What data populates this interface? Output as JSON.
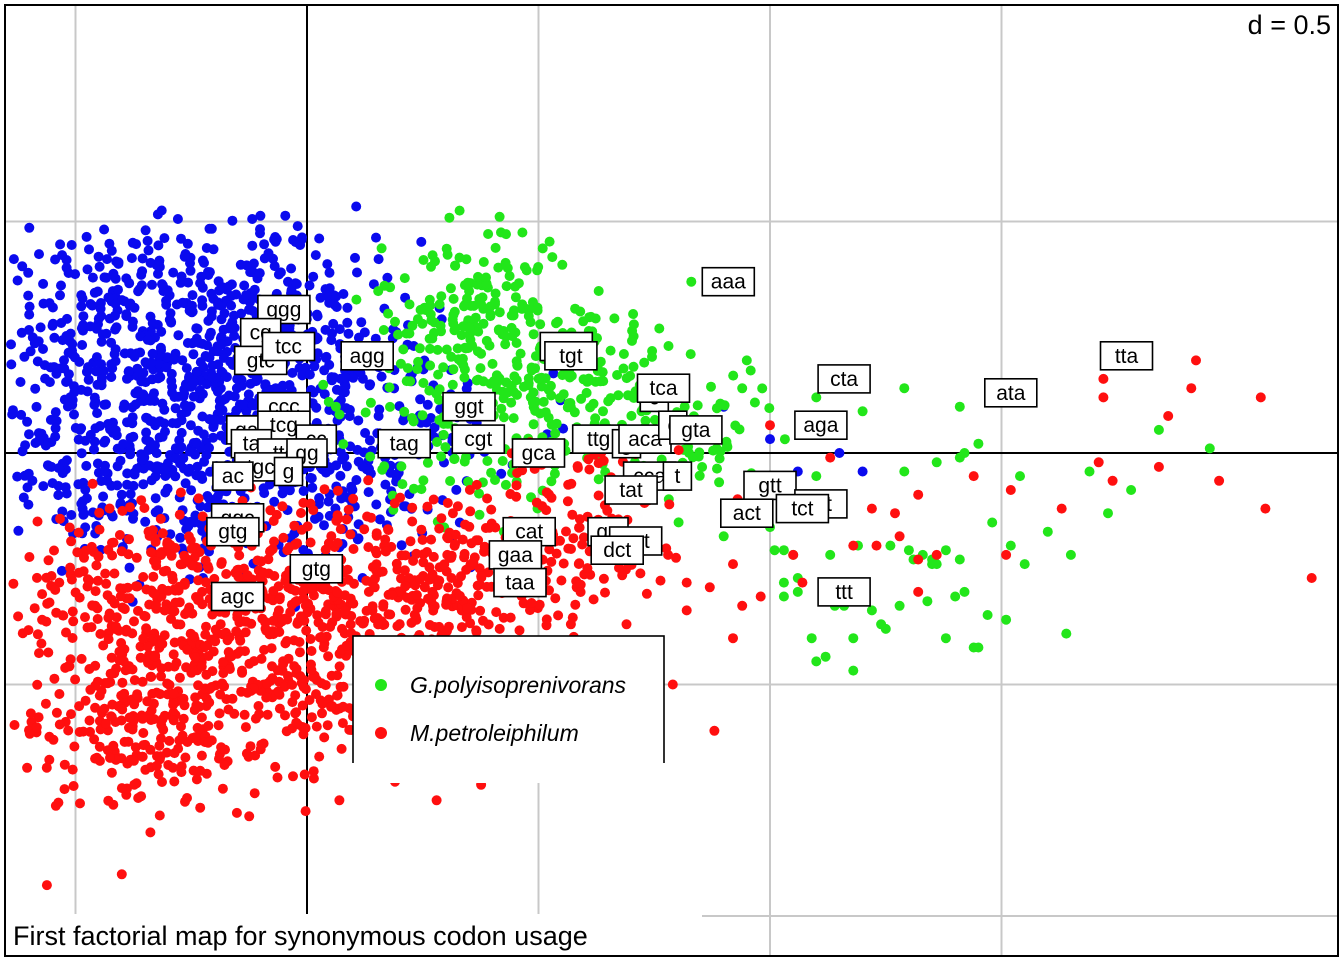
{
  "chart_data": {
    "type": "scatter",
    "title": "First factorial map for synonymous codon usage",
    "scale_label": "d = 0.5",
    "grid": true,
    "grid_step": 0.5,
    "xlim": [
      -0.65,
      2.25
    ],
    "ylim": [
      -1.9,
      1.0
    ],
    "legend": {
      "placement": "bottom-center",
      "entries": [
        {
          "name": "G.polyisoprenivorans",
          "color": "#22e61a"
        },
        {
          "name": "M.petroleiphilum",
          "color": "#ff0f0f"
        }
      ]
    },
    "colors": {
      "blue_group": "#0a0aee",
      "green_group": "#22e61a",
      "red_group": "#ff0f0f"
    },
    "clouds": [
      {
        "color": "#0a0aee",
        "core": [
          [
            -0.51,
            0.26
          ],
          [
            -0.47,
            -0.07
          ],
          [
            -0.42,
            0.13
          ],
          [
            -0.37,
            0.33
          ],
          [
            -0.33,
            -0.07
          ],
          [
            -0.29,
            0.18
          ],
          [
            -0.24,
            0.37
          ],
          [
            -0.21,
            0.04
          ],
          [
            -0.17,
            -0.11
          ],
          [
            -0.14,
            0.2
          ],
          [
            -0.1,
            0.33
          ],
          [
            -0.06,
            -0.02
          ],
          [
            -0.02,
            0.15
          ],
          [
            0.04,
            0.26
          ],
          [
            0.1,
            -0.04
          ],
          [
            0.18,
            0.09
          ]
        ],
        "spread": [
          0.13,
          0.09
        ],
        "points": 1300,
        "extra": [
          [
            -0.41,
            -0.07
          ],
          [
            -0.4,
            -0.09
          ],
          [
            -0.03,
            0.46
          ],
          [
            -0.02,
            0.49
          ],
          [
            0.07,
            0.03
          ],
          [
            0.33,
            -0.15
          ],
          [
            0.9,
            0.1
          ],
          [
            1.0,
            0.03
          ],
          [
            1.06,
            -0.04
          ],
          [
            1.15,
            0.0
          ],
          [
            1.2,
            -0.04
          ],
          [
            0.12,
            -0.27
          ]
        ]
      },
      {
        "color": "#22e61a",
        "core": [
          [
            0.25,
            0.2
          ],
          [
            0.3,
            0.31
          ],
          [
            0.35,
            0.14
          ],
          [
            0.42,
            0.26
          ],
          [
            0.5,
            0.1
          ],
          [
            0.58,
            0.22
          ],
          [
            0.65,
            0.14
          ],
          [
            0.75,
            0.1
          ],
          [
            0.85,
            0.01
          ],
          [
            0.25,
            0.02
          ],
          [
            0.46,
            0.0
          ],
          [
            0.38,
            0.37
          ]
        ],
        "spread": [
          0.09,
          0.07
        ],
        "points": 520,
        "extra": [
          [
            0.83,
            0.37
          ],
          [
            1.1,
            0.12
          ],
          [
            1.2,
            0.09
          ],
          [
            1.29,
            0.14
          ],
          [
            1.41,
            0.1
          ],
          [
            1.29,
            -0.04
          ],
          [
            1.36,
            -0.02
          ],
          [
            1.41,
            -0.01
          ],
          [
            1.42,
            0.0
          ],
          [
            1.45,
            0.02
          ],
          [
            1.54,
            -0.05
          ],
          [
            1.69,
            -0.04
          ],
          [
            1.78,
            -0.08
          ],
          [
            1.84,
            0.05
          ],
          [
            1.95,
            0.01
          ],
          [
            1.35,
            -0.24
          ],
          [
            1.41,
            -0.23
          ],
          [
            1.3,
            -0.21
          ],
          [
            1.03,
            -0.21
          ],
          [
            1.14,
            -0.3
          ],
          [
            1.36,
            -0.24
          ],
          [
            1.38,
            -0.4
          ],
          [
            1.55,
            -0.24
          ],
          [
            1.51,
            -0.36
          ],
          [
            1.42,
            -0.3
          ],
          [
            1.31,
            -0.23
          ],
          [
            1.26,
            -0.2
          ],
          [
            1.19,
            -0.2
          ],
          [
            1.0,
            -0.16
          ],
          [
            1.64,
            -0.39
          ],
          [
            1.18,
            -0.4
          ],
          [
            1.18,
            -0.47
          ],
          [
            1.03,
            -0.31
          ],
          [
            1.05,
            -0.22
          ],
          [
            1.33,
            -0.22
          ],
          [
            1.34,
            -0.32
          ],
          [
            1.06,
            -0.3
          ],
          [
            1.14,
            -0.33
          ],
          [
            1.13,
            -0.22
          ],
          [
            1.24,
            -0.37
          ],
          [
            1.22,
            -0.34
          ],
          [
            1.16,
            -0.33
          ],
          [
            1.18,
            -0.31
          ],
          [
            0.63,
            0.35
          ],
          [
            0.95,
            0.2
          ],
          [
            1.1,
            -0.05
          ],
          [
            1.1,
            -0.45
          ],
          [
            1.12,
            -0.44
          ],
          [
            1.09,
            -0.4
          ],
          [
            1.01,
            -0.21
          ],
          [
            0.95,
            -0.12
          ],
          [
            0.9,
            -0.18
          ],
          [
            1.06,
            -0.27
          ],
          [
            1.03,
            -0.28
          ],
          [
            1.44,
            -0.42
          ],
          [
            1.47,
            -0.35
          ],
          [
            1.35,
            -0.23
          ],
          [
            1.38,
            -0.21
          ],
          [
            1.28,
            -0.33
          ],
          [
            1.25,
            -0.38
          ],
          [
            1.4,
            -0.31
          ],
          [
            1.45,
            -0.42
          ],
          [
            1.48,
            -0.15
          ],
          [
            1.52,
            -0.2
          ],
          [
            1.6,
            -0.17
          ],
          [
            1.65,
            -0.22
          ],
          [
            1.73,
            -0.13
          ]
        ]
      },
      {
        "color": "#ff0f0f",
        "core": [
          [
            -0.44,
            -0.33
          ],
          [
            -0.38,
            -0.53
          ],
          [
            -0.33,
            -0.26
          ],
          [
            -0.28,
            -0.61
          ],
          [
            -0.22,
            -0.4
          ],
          [
            -0.17,
            -0.22
          ],
          [
            -0.12,
            -0.51
          ],
          [
            -0.06,
            -0.33
          ],
          [
            0.01,
            -0.26
          ],
          [
            0.08,
            -0.44
          ],
          [
            0.15,
            -0.33
          ],
          [
            0.22,
            -0.2
          ],
          [
            0.3,
            -0.37
          ],
          [
            0.4,
            -0.26
          ],
          [
            0.52,
            -0.18
          ],
          [
            0.62,
            -0.13
          ],
          [
            -0.42,
            -0.65
          ],
          [
            -0.3,
            -0.42
          ],
          [
            -0.02,
            -0.56
          ]
        ],
        "spread": [
          0.12,
          0.08
        ],
        "points": 1350,
        "extra": [
          [
            0.85,
            0.05
          ],
          [
            0.93,
            -0.1
          ],
          [
            0.96,
            -0.14
          ],
          [
            1.07,
            -0.28
          ],
          [
            1.22,
            -0.12
          ],
          [
            1.28,
            -0.18
          ],
          [
            1.32,
            -0.23
          ],
          [
            1.36,
            -0.22
          ],
          [
            1.44,
            -0.05
          ],
          [
            1.52,
            -0.08
          ],
          [
            1.63,
            -0.12
          ],
          [
            1.71,
            -0.02
          ],
          [
            1.72,
            0.16
          ],
          [
            1.74,
            -0.06
          ],
          [
            1.84,
            -0.03
          ],
          [
            1.97,
            -0.06
          ],
          [
            2.07,
            -0.12
          ],
          [
            2.17,
            -0.27
          ],
          [
            2.25,
            -0.04
          ],
          [
            2.47,
            -0.04
          ],
          [
            2.7,
            -0.04
          ],
          [
            1.91,
            0.14
          ],
          [
            1.72,
            0.12
          ],
          [
            0.94,
            -0.33
          ],
          [
            0.82,
            -0.34
          ],
          [
            0.72,
            -0.41
          ],
          [
            0.68,
            -0.56
          ],
          [
            0.62,
            -0.41
          ],
          [
            0.45,
            -0.6
          ],
          [
            0.67,
            -0.46
          ],
          [
            0.55,
            -0.47
          ],
          [
            0.98,
            -0.31
          ],
          [
            1.05,
            -0.22
          ],
          [
            1.32,
            -0.3
          ],
          [
            1.51,
            -0.22
          ],
          [
            1.86,
            0.08
          ],
          [
            1.92,
            0.2
          ],
          [
            2.06,
            0.12
          ],
          [
            1.17,
            0.18
          ],
          [
            1.0,
            0.06
          ],
          [
            1.13,
            -0.01
          ],
          [
            0.76,
            -0.43
          ],
          [
            0.79,
            -0.5
          ],
          [
            0.69,
            -0.37
          ],
          [
            0.92,
            -0.4
          ],
          [
            0.68,
            -0.52
          ],
          [
            0.88,
            -0.6
          ],
          [
            -0.4,
            -0.91
          ],
          [
            -0.19,
            -0.66
          ],
          [
            -0.1,
            -0.64
          ],
          [
            0.07,
            -0.75
          ],
          [
            0.19,
            -0.71
          ],
          [
            0.28,
            -0.75
          ],
          [
            0.38,
            -0.64
          ],
          [
            0.53,
            -0.55
          ],
          [
            0.57,
            -0.37
          ],
          [
            0.72,
            -0.26
          ],
          [
            0.78,
            -0.22
          ],
          [
            0.82,
            -0.28
          ],
          [
            0.87,
            -0.29
          ],
          [
            0.92,
            -0.24
          ],
          [
            1.18,
            -0.2
          ],
          [
            1.23,
            -0.2
          ],
          [
            1.27,
            -0.13
          ],
          [
            1.32,
            -0.09
          ]
        ]
      }
    ],
    "codon_labels": [
      {
        "text": "ggg",
        "x": -0.05,
        "y": 0.31
      },
      {
        "text": "cg",
        "x": -0.1,
        "y": 0.26
      },
      {
        "text": "gtc",
        "x": -0.1,
        "y": 0.2
      },
      {
        "text": "tcc",
        "x": -0.04,
        "y": 0.23
      },
      {
        "text": "agg",
        "x": 0.13,
        "y": 0.21
      },
      {
        "text": "ccc",
        "x": -0.05,
        "y": 0.1
      },
      {
        "text": "ga",
        "x": -0.13,
        "y": 0.05
      },
      {
        "text": "tcg",
        "x": -0.05,
        "y": 0.06
      },
      {
        "text": "cc",
        "x": 0.02,
        "y": 0.03
      },
      {
        "text": "ta",
        "x": -0.12,
        "y": 0.02
      },
      {
        "text": "ttc",
        "x": -0.05,
        "y": 0.0
      },
      {
        "text": "gg",
        "x": 0.0,
        "y": 0.0
      },
      {
        "text": "tgc",
        "x": -0.1,
        "y": -0.03
      },
      {
        "text": "ac",
        "x": -0.16,
        "y": -0.05
      },
      {
        "text": "g",
        "x": -0.04,
        "y": -0.04
      },
      {
        "text": "tag",
        "x": 0.21,
        "y": 0.02
      },
      {
        "text": "ggt",
        "x": 0.35,
        "y": 0.1
      },
      {
        "text": "cgt",
        "x": 0.37,
        "y": 0.03
      },
      {
        "text": "gga",
        "x": 0.56,
        "y": 0.23
      },
      {
        "text": "tgt",
        "x": 0.57,
        "y": 0.21
      },
      {
        "text": "ttg",
        "x": 0.63,
        "y": 0.03
      },
      {
        "text": "gca",
        "x": 0.5,
        "y": 0.0
      },
      {
        "text": "g",
        "x": 0.69,
        "y": 0.02
      },
      {
        "text": "aca",
        "x": 0.73,
        "y": 0.03
      },
      {
        "text": "c",
        "x": 0.75,
        "y": 0.12
      },
      {
        "text": "tca",
        "x": 0.77,
        "y": 0.14
      },
      {
        "text": "c",
        "x": 0.79,
        "y": 0.06
      },
      {
        "text": "gta",
        "x": 0.84,
        "y": 0.05
      },
      {
        "text": "cca",
        "x": 0.74,
        "y": -0.05
      },
      {
        "text": "t",
        "x": 0.8,
        "y": -0.05
      },
      {
        "text": "tat",
        "x": 0.7,
        "y": -0.08
      },
      {
        "text": "cat",
        "x": 0.48,
        "y": -0.17
      },
      {
        "text": "ga",
        "x": 0.65,
        "y": -0.17
      },
      {
        "text": "gct",
        "x": 0.71,
        "y": -0.19
      },
      {
        "text": "dct",
        "x": 0.67,
        "y": -0.21
      },
      {
        "text": "gaa",
        "x": 0.45,
        "y": -0.22
      },
      {
        "text": "taa",
        "x": 0.46,
        "y": -0.28
      },
      {
        "text": "aaa",
        "x": 0.91,
        "y": 0.37
      },
      {
        "text": "cta",
        "x": 1.16,
        "y": 0.16
      },
      {
        "text": "aga",
        "x": 1.11,
        "y": 0.06
      },
      {
        "text": "ata",
        "x": 1.52,
        "y": 0.13
      },
      {
        "text": "tta",
        "x": 1.77,
        "y": 0.21
      },
      {
        "text": "gtt",
        "x": 1.0,
        "y": -0.07
      },
      {
        "text": "ctt",
        "x": 1.11,
        "y": -0.11
      },
      {
        "text": "tct",
        "x": 1.07,
        "y": -0.12
      },
      {
        "text": "act",
        "x": 0.95,
        "y": -0.13
      },
      {
        "text": "ttt",
        "x": 1.16,
        "y": -0.3
      },
      {
        "text": "ggc",
        "x": -0.15,
        "y": -0.14
      },
      {
        "text": "gtg",
        "x": -0.16,
        "y": -0.17
      },
      {
        "text": "gtg",
        "x": 0.02,
        "y": -0.25
      },
      {
        "text": "agc",
        "x": -0.15,
        "y": -0.31
      }
    ]
  }
}
